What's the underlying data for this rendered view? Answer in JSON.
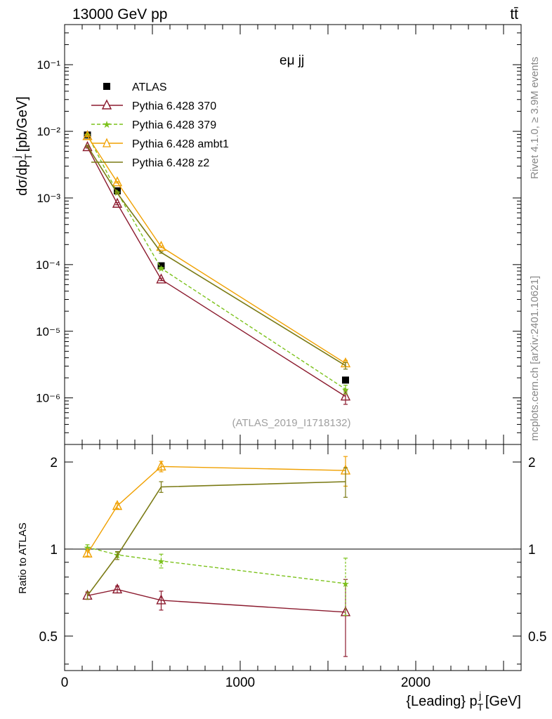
{
  "header": {
    "energy_label": "13000 GeV pp",
    "process_label": "tt̄",
    "channel_label": "eμ jj",
    "analysis_id": "(ATLAS_2019_I1718132)",
    "side_rivet": "Rivet 4.1.0, ≥ 3.9M events",
    "side_mcplots": "mcplots.cern.ch [arXiv:2401.10621]"
  },
  "chart_data": [
    {
      "type": "line",
      "panel": "main",
      "yscale": "log",
      "ylabel": "dσ/dp_T^j [pb/GeV]",
      "xlim": [
        0,
        2600
      ],
      "ylim": [
        2e-07,
        0.4
      ],
      "y_ticks": [
        {
          "value": 1e-06,
          "label": "10⁻⁶"
        },
        {
          "value": 1e-05,
          "label": "10⁻⁵"
        },
        {
          "value": 0.0001,
          "label": "10⁻⁴"
        },
        {
          "value": 0.001,
          "label": "10⁻³"
        },
        {
          "value": 0.01,
          "label": "10⁻²"
        },
        {
          "value": 0.1,
          "label": "10⁻¹"
        }
      ],
      "x": [
        130,
        300,
        550,
        1600
      ],
      "series": [
        {
          "name": "ATLAS",
          "color": "#000000",
          "style": "data",
          "marker": "square",
          "values": [
            0.0088,
            0.00128,
            9.6e-05,
            1.85e-06
          ]
        },
        {
          "name": "Pythia 6.428 370",
          "color": "#8b1a2e",
          "style": "solid",
          "marker": "triangle-open",
          "values": [
            0.0058,
            0.00082,
            6e-05,
            1.05e-06
          ],
          "err": [
            0.0002,
            3e-05,
            2.5e-06,
            2.5e-07
          ]
        },
        {
          "name": "Pythia 6.428 379",
          "color": "#7cc21c",
          "style": "dashed",
          "marker": "star",
          "values": [
            0.0089,
            0.00121,
            8.8e-05,
            1.35e-06
          ],
          "err": [
            0.0002,
            3e-05,
            3e-06,
            2e-07
          ]
        },
        {
          "name": "Pythia 6.428 ambt1",
          "color": "#f0a000",
          "style": "solid",
          "marker": "triangle-open",
          "values": [
            0.0085,
            0.00172,
            0.000185,
            3.3e-06
          ],
          "err": [
            0.0002,
            4e-05,
            5e-06,
            3.5e-07
          ]
        },
        {
          "name": "Pythia 6.428 z2",
          "color": "#7a7a14",
          "style": "solid",
          "marker": "none",
          "values": [
            0.006,
            0.00118,
            0.000152,
            3.05e-06
          ],
          "err": [
            0.0002,
            3e-05,
            4e-06,
            3.5e-07
          ]
        }
      ]
    },
    {
      "type": "line",
      "panel": "ratio",
      "yscale": "log",
      "ylabel": "Ratio to ATLAS",
      "xlabel": "{Leading} p_T^j [GeV]",
      "xlim": [
        0,
        2600
      ],
      "ylim": [
        0.38,
        2.3
      ],
      "x_ticks": [
        {
          "value": 0,
          "label": "0"
        },
        {
          "value": 1000,
          "label": "1000"
        },
        {
          "value": 2000,
          "label": "2000"
        }
      ],
      "y_ticks": [
        {
          "value": 0.5,
          "label": "0.5"
        },
        {
          "value": 1,
          "label": "1"
        },
        {
          "value": 2,
          "label": "2"
        }
      ],
      "x": [
        130,
        300,
        550,
        1600
      ],
      "series": [
        {
          "name": "Pythia 6.428 370",
          "color": "#8b1a2e",
          "style": "solid",
          "marker": "triangle-open",
          "values": [
            0.69,
            0.725,
            0.665,
            0.605
          ],
          "err": [
            0.02,
            0.02,
            0.05,
            0.18
          ]
        },
        {
          "name": "Pythia 6.428 379",
          "color": "#7cc21c",
          "style": "dashed",
          "marker": "star",
          "values": [
            1.015,
            0.955,
            0.91,
            0.76
          ],
          "err": [
            0.02,
            0.02,
            0.05,
            0.17
          ]
        },
        {
          "name": "Pythia 6.428 ambt1",
          "color": "#f0a000",
          "style": "solid",
          "marker": "triangle-open",
          "values": [
            0.965,
            1.41,
            1.93,
            1.87
          ],
          "err": [
            0.02,
            0.03,
            0.08,
            0.22
          ]
        },
        {
          "name": "Pythia 6.428 z2",
          "color": "#7a7a14",
          "style": "solid",
          "marker": "none",
          "values": [
            0.69,
            0.95,
            1.64,
            1.71
          ],
          "err": [
            0.02,
            0.03,
            0.07,
            0.2
          ]
        }
      ]
    }
  ]
}
